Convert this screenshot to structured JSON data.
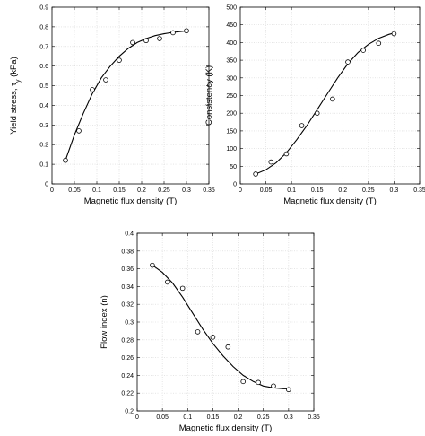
{
  "chart_data": [
    {
      "type": "scatter",
      "id": "yield",
      "title": "",
      "xlabel": "Magnetic flux density (T)",
      "ylabel": "Yield stress, τ",
      "ylabel_sub": "y",
      "ylabel_tail": " (kPa)",
      "xlim": [
        0,
        0.35
      ],
      "ylim": [
        0,
        0.9
      ],
      "xticks": [
        0,
        0.05,
        0.1,
        0.15,
        0.2,
        0.25,
        0.3,
        0.35
      ],
      "xtick_labels": [
        "0",
        "0.05",
        "0.1",
        "0.15",
        "0.2",
        "0.25",
        "0.3",
        "0.35"
      ],
      "yticks": [
        0,
        0.1,
        0.2,
        0.3,
        0.4,
        0.5,
        0.6,
        0.7,
        0.8,
        0.9
      ],
      "ytick_labels": [
        "0",
        "0.1",
        "0.2",
        "0.3",
        "0.4",
        "0.5",
        "0.6",
        "0.7",
        "0.8",
        "0.9"
      ],
      "grid": true,
      "series": [
        {
          "marker": "open-circle",
          "x": [
            0.03,
            0.06,
            0.09,
            0.12,
            0.15,
            0.18,
            0.21,
            0.24,
            0.27,
            0.3
          ],
          "y": [
            0.12,
            0.27,
            0.48,
            0.53,
            0.63,
            0.72,
            0.73,
            0.74,
            0.77,
            0.78
          ]
        },
        {
          "style": "line",
          "x": [
            0.03,
            0.05,
            0.07,
            0.09,
            0.11,
            0.13,
            0.15,
            0.17,
            0.19,
            0.21,
            0.23,
            0.25,
            0.27,
            0.29,
            0.3
          ],
          "y": [
            0.12,
            0.25,
            0.36,
            0.46,
            0.54,
            0.6,
            0.65,
            0.69,
            0.72,
            0.74,
            0.755,
            0.765,
            0.772,
            0.777,
            0.78
          ]
        }
      ]
    },
    {
      "type": "scatter",
      "id": "consistency",
      "title": "",
      "xlabel": "Magnetic flux density (T)",
      "ylabel": "Consistency (K)",
      "xlim": [
        0,
        0.35
      ],
      "ylim": [
        0,
        500
      ],
      "xticks": [
        0,
        0.05,
        0.1,
        0.15,
        0.2,
        0.25,
        0.3,
        0.35
      ],
      "xtick_labels": [
        "0",
        "0.05",
        "0.1",
        "0.15",
        "0.2",
        "0.25",
        "0.3",
        "0.35"
      ],
      "yticks": [
        0,
        50,
        100,
        150,
        200,
        250,
        300,
        350,
        400,
        450,
        500
      ],
      "ytick_labels": [
        "0",
        "50",
        "100",
        "150",
        "200",
        "250",
        "300",
        "350",
        "400",
        "450",
        "500"
      ],
      "grid": true,
      "series": [
        {
          "marker": "open-circle",
          "x": [
            0.03,
            0.06,
            0.09,
            0.12,
            0.15,
            0.18,
            0.21,
            0.24,
            0.27,
            0.3
          ],
          "y": [
            28,
            62,
            85,
            165,
            200,
            240,
            345,
            378,
            398,
            425
          ]
        },
        {
          "style": "line",
          "x": [
            0.03,
            0.05,
            0.07,
            0.09,
            0.11,
            0.13,
            0.15,
            0.17,
            0.19,
            0.21,
            0.23,
            0.25,
            0.27,
            0.29,
            0.3
          ],
          "y": [
            28,
            40,
            60,
            88,
            125,
            165,
            210,
            255,
            300,
            340,
            372,
            395,
            412,
            423,
            427
          ]
        }
      ]
    },
    {
      "type": "scatter",
      "id": "flow",
      "title": "",
      "xlabel": "Magnetic flux density (T)",
      "ylabel": "Flow index (n)",
      "xlim": [
        0,
        0.35
      ],
      "ylim": [
        0.2,
        0.4
      ],
      "xticks": [
        0,
        0.05,
        0.1,
        0.15,
        0.2,
        0.25,
        0.3,
        0.35
      ],
      "xtick_labels": [
        "0",
        "0.05",
        "0.1",
        "0.15",
        "0.2",
        "0.25",
        "0.3",
        "0.35"
      ],
      "yticks": [
        0.2,
        0.22,
        0.24,
        0.26,
        0.28,
        0.3,
        0.32,
        0.34,
        0.36,
        0.38,
        0.4
      ],
      "ytick_labels": [
        "0.2",
        "0.22",
        "0.24",
        "0.26",
        "0.28",
        "0.3",
        "0.32",
        "0.34",
        "0.36",
        "0.38",
        "0.4"
      ],
      "grid": true,
      "series": [
        {
          "marker": "open-circle",
          "x": [
            0.03,
            0.06,
            0.09,
            0.12,
            0.15,
            0.18,
            0.21,
            0.24,
            0.27,
            0.3
          ],
          "y": [
            0.364,
            0.345,
            0.338,
            0.289,
            0.283,
            0.272,
            0.233,
            0.232,
            0.228,
            0.224
          ]
        },
        {
          "style": "line",
          "x": [
            0.03,
            0.05,
            0.07,
            0.09,
            0.11,
            0.13,
            0.15,
            0.17,
            0.19,
            0.21,
            0.23,
            0.25,
            0.27,
            0.29,
            0.3
          ],
          "y": [
            0.364,
            0.356,
            0.344,
            0.328,
            0.31,
            0.292,
            0.276,
            0.262,
            0.25,
            0.24,
            0.233,
            0.228,
            0.226,
            0.225,
            0.225
          ]
        }
      ]
    }
  ]
}
